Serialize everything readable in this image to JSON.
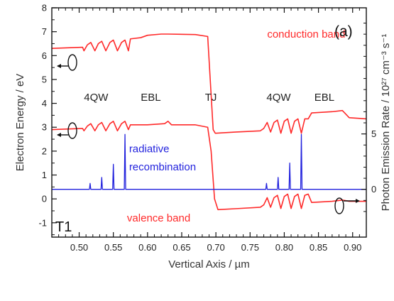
{
  "chart_data": {
    "type": "line",
    "panel_label": "(a)",
    "sample_label": "T1",
    "xlabel": "Vertical Axis / µm",
    "ylabel_left": "Electron Energy / eV",
    "ylabel_right": "Photon Emission Rate / 10²⁷ cm⁻³ s⁻¹",
    "xlim": [
      0.46,
      0.92
    ],
    "ylim_left": [
      -1.6,
      8
    ],
    "xticks": [
      0.5,
      0.55,
      0.6,
      0.65,
      0.7,
      0.75,
      0.8,
      0.85,
      0.9
    ],
    "xtick_labels": [
      "0.50",
      "0.55",
      "0.60",
      "0.65",
      "0.70",
      "0.75",
      "0.80",
      "0.85",
      "0.90"
    ],
    "yticks_left": [
      -1,
      0,
      1,
      2,
      3,
      4,
      5,
      6,
      7,
      8
    ],
    "ytick_labels_left": [
      "-1",
      "0",
      "1",
      "2",
      "3",
      "4",
      "5",
      "6",
      "7",
      "8"
    ],
    "right_axis": {
      "ticks": [
        0,
        5
      ],
      "tick_labels": [
        "0",
        "5"
      ],
      "zero_at_left_energy": 0.4,
      "left_units_per_unit": 0.464
    },
    "grid": false,
    "series": [
      {
        "name": "conduction band",
        "axis": "left",
        "color": "#ff2a2a",
        "x": [
          0.46,
          0.505,
          0.507,
          0.512,
          0.517,
          0.523,
          0.528,
          0.533,
          0.539,
          0.545,
          0.55,
          0.556,
          0.562,
          0.567,
          0.572,
          0.575,
          0.59,
          0.6,
          0.62,
          0.63,
          0.67,
          0.688,
          0.696,
          0.699,
          0.73,
          0.765,
          0.77,
          0.775,
          0.78,
          0.785,
          0.79,
          0.795,
          0.8,
          0.805,
          0.81,
          0.815,
          0.82,
          0.825,
          0.83,
          0.835,
          0.84,
          0.87,
          0.885,
          0.895,
          0.92
        ],
        "y": [
          6.3,
          6.35,
          6.2,
          6.45,
          6.55,
          6.2,
          6.5,
          6.6,
          6.2,
          6.55,
          6.65,
          6.2,
          6.55,
          6.65,
          6.2,
          6.7,
          6.75,
          6.85,
          6.9,
          6.9,
          6.88,
          6.8,
          2.9,
          2.75,
          2.8,
          2.85,
          2.95,
          3.2,
          2.8,
          3.2,
          3.3,
          2.75,
          3.25,
          3.35,
          2.75,
          3.25,
          3.35,
          2.75,
          3.35,
          3.35,
          3.6,
          3.65,
          3.7,
          3.4,
          3.35
        ]
      },
      {
        "name": "",
        "axis": "left",
        "color": "#ff2a2a",
        "x": [
          0.46,
          0.505,
          0.507,
          0.512,
          0.517,
          0.523,
          0.528,
          0.533,
          0.539,
          0.545,
          0.55,
          0.556,
          0.562,
          0.567,
          0.572,
          0.575,
          0.59,
          0.6,
          0.625,
          0.63,
          0.635,
          0.67,
          0.688,
          0.693,
          0.698,
          0.703,
          0.735,
          0.765,
          0.77,
          0.775,
          0.78,
          0.785,
          0.79,
          0.795,
          0.8,
          0.805,
          0.81,
          0.815,
          0.82,
          0.825,
          0.83,
          0.835,
          0.84,
          0.87,
          0.885,
          0.895,
          0.92
        ],
        "y": [
          2.9,
          2.95,
          2.85,
          3.05,
          3.15,
          2.85,
          3.1,
          3.2,
          2.85,
          3.15,
          3.25,
          2.85,
          3.15,
          3.25,
          2.9,
          3.1,
          3.1,
          3.1,
          3.15,
          3.25,
          3.1,
          3.1,
          3.0,
          2.0,
          0.0,
          -0.45,
          -0.4,
          -0.35,
          -0.25,
          0.05,
          -0.35,
          0.05,
          0.15,
          -0.4,
          0.1,
          0.2,
          -0.4,
          0.1,
          0.2,
          -0.4,
          0.15,
          0.2,
          -0.15,
          -0.1,
          -0.05,
          -0.1,
          -0.1
        ]
      },
      {
        "name": "radiative recombination",
        "axis": "left",
        "color": "#2222dd",
        "x": [
          0.46,
          0.515,
          0.516,
          0.517,
          0.532,
          0.533,
          0.534,
          0.549,
          0.55,
          0.551,
          0.566,
          0.567,
          0.568,
          0.773,
          0.774,
          0.775,
          0.79,
          0.791,
          0.792,
          0.807,
          0.808,
          0.809,
          0.824,
          0.825,
          0.826,
          0.92
        ],
        "y": [
          0.4,
          0.4,
          0.65,
          0.4,
          0.4,
          0.9,
          0.4,
          0.4,
          1.45,
          0.4,
          0.4,
          2.7,
          0.4,
          0.4,
          0.65,
          0.4,
          0.4,
          0.9,
          0.4,
          0.4,
          1.5,
          0.4,
          0.4,
          2.7,
          0.4,
          0.4
        ]
      }
    ],
    "annotations": [
      {
        "text": "conduction band",
        "x": 0.775,
        "y": 6.75,
        "color": "#ff2a2a",
        "size": 15
      },
      {
        "text": "valence band",
        "x": 0.57,
        "y": -0.95,
        "color": "#ff2a2a",
        "size": 15
      },
      {
        "text": "radiative",
        "x": 0.573,
        "y": 1.95,
        "color": "#2222dd",
        "size": 15
      },
      {
        "text": "recombination",
        "x": 0.573,
        "y": 1.2,
        "color": "#2222dd",
        "size": 15
      },
      {
        "text": "4QW",
        "x": 0.507,
        "y": 4.1,
        "color": "#222222",
        "size": 15
      },
      {
        "text": "EBL",
        "x": 0.59,
        "y": 4.1,
        "color": "#222222",
        "size": 15
      },
      {
        "text": "TJ",
        "x": 0.684,
        "y": 4.1,
        "color": "#222222",
        "size": 15
      },
      {
        "text": "4QW",
        "x": 0.774,
        "y": 4.1,
        "color": "#222222",
        "size": 15
      },
      {
        "text": "EBL",
        "x": 0.844,
        "y": 4.1,
        "color": "#222222",
        "size": 15
      }
    ]
  }
}
